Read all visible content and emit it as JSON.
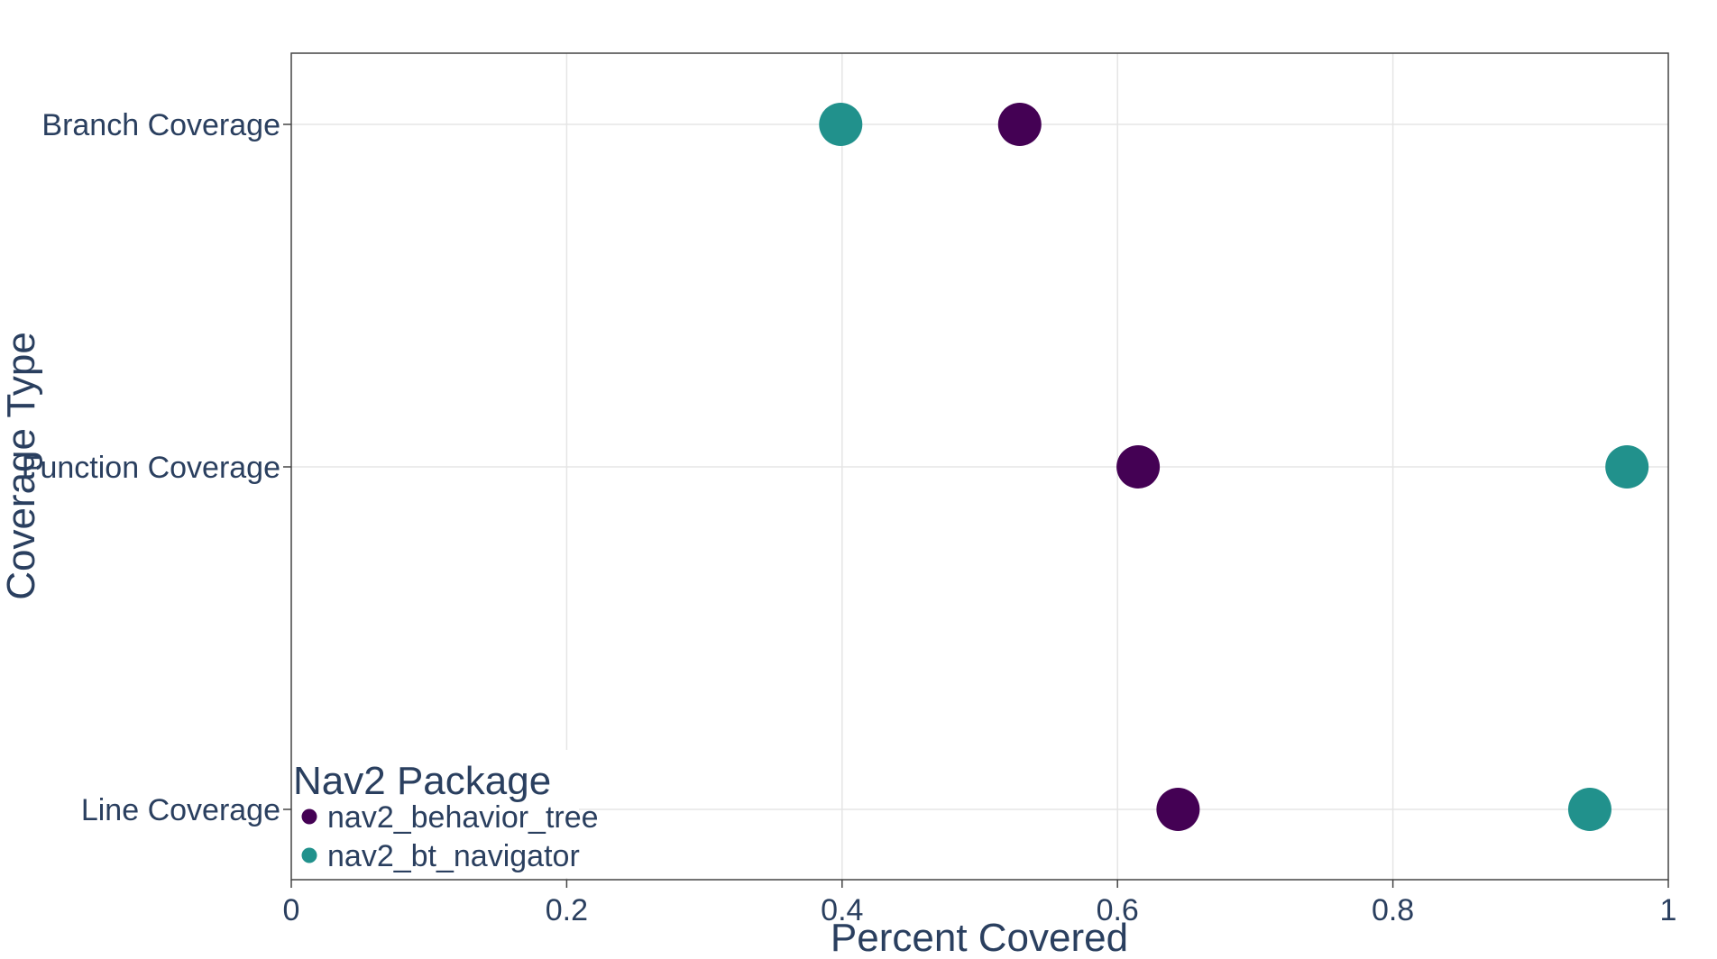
{
  "chart_data": {
    "type": "scatter",
    "xlabel": "Percent Covered",
    "ylabel": "Coverage Type",
    "xlim": [
      0,
      1
    ],
    "x_ticks": [
      0,
      0.2,
      0.4,
      0.6,
      0.8,
      1
    ],
    "x_tick_labels": [
      "0",
      "0.2",
      "0.4",
      "0.6",
      "0.8",
      "1"
    ],
    "categories": [
      "Branch Coverage",
      "Function Coverage",
      "Line Coverage"
    ],
    "grid": true,
    "legend_title": "Nav2 Package",
    "legend_position": "bottom-left",
    "series": [
      {
        "name": "nav2_behavior_tree",
        "color": "#440154",
        "points": [
          {
            "y": "Branch Coverage",
            "x": 0.529
          },
          {
            "y": "Function Coverage",
            "x": 0.615
          },
          {
            "y": "Line Coverage",
            "x": 0.644
          }
        ]
      },
      {
        "name": "nav2_bt_navigator",
        "color": "#21918c",
        "points": [
          {
            "y": "Branch Coverage",
            "x": 0.399
          },
          {
            "y": "Function Coverage",
            "x": 0.97
          },
          {
            "y": "Line Coverage",
            "x": 0.943
          }
        ]
      }
    ]
  }
}
